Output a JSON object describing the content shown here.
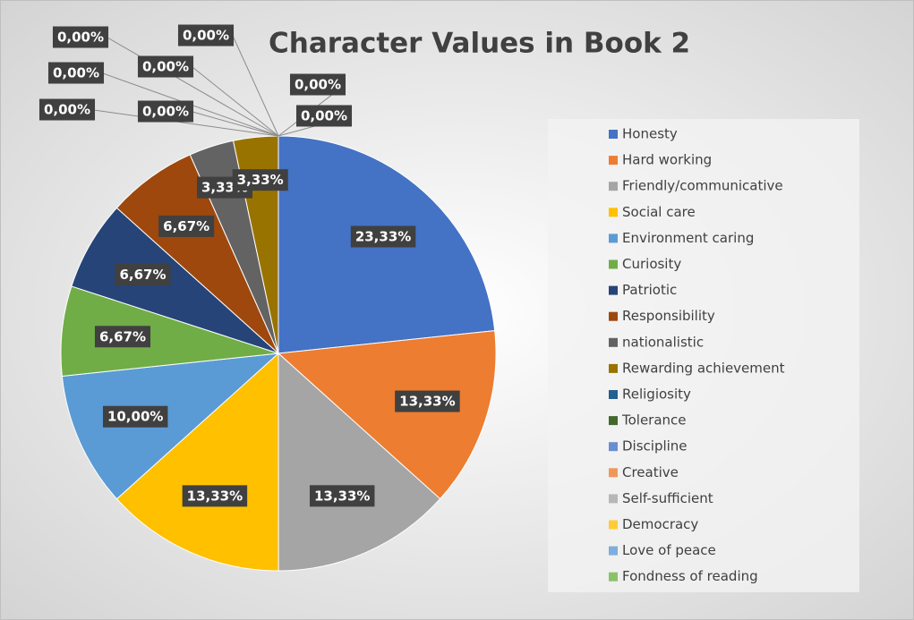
{
  "chart_data": {
    "type": "pie",
    "title": "Character Values in Book 2",
    "categories": [
      "Honesty",
      "Hard working",
      "Friendly/communicative",
      "Social care",
      "Environment caring",
      "Curiosity",
      "Patriotic",
      "Responsibility",
      "nationalistic",
      "Rewarding achievement",
      "Religiosity",
      "Tolerance",
      "Discipline",
      "Creative",
      "Self-sufficient",
      "Democracy",
      "Love of peace",
      "Fondness of reading"
    ],
    "values": [
      23.33,
      13.33,
      13.33,
      13.33,
      10.0,
      6.67,
      6.67,
      6.67,
      3.33,
      3.33,
      0,
      0,
      0,
      0,
      0,
      0,
      0,
      0
    ],
    "value_labels": [
      "23,33%",
      "13,33%",
      "13,33%",
      "13,33%",
      "10,00%",
      "6,67%",
      "6,67%",
      "6,67%",
      "3,33%",
      "3,33%",
      "0,00%",
      "0,00%",
      "0,00%",
      "0,00%",
      "0,00%",
      "0,00%",
      "0,00%",
      "0,00%"
    ],
    "colors": [
      "#4472c4",
      "#ed7d31",
      "#a5a5a5",
      "#ffc000",
      "#5b9bd5",
      "#70ad47",
      "#264478",
      "#9e480e",
      "#636363",
      "#997300",
      "#255e91",
      "#43682b",
      "#698ed0",
      "#f1975a",
      "#b7b7b7",
      "#ffcd33",
      "#7cafdd",
      "#8cc168"
    ],
    "legend": "right"
  }
}
